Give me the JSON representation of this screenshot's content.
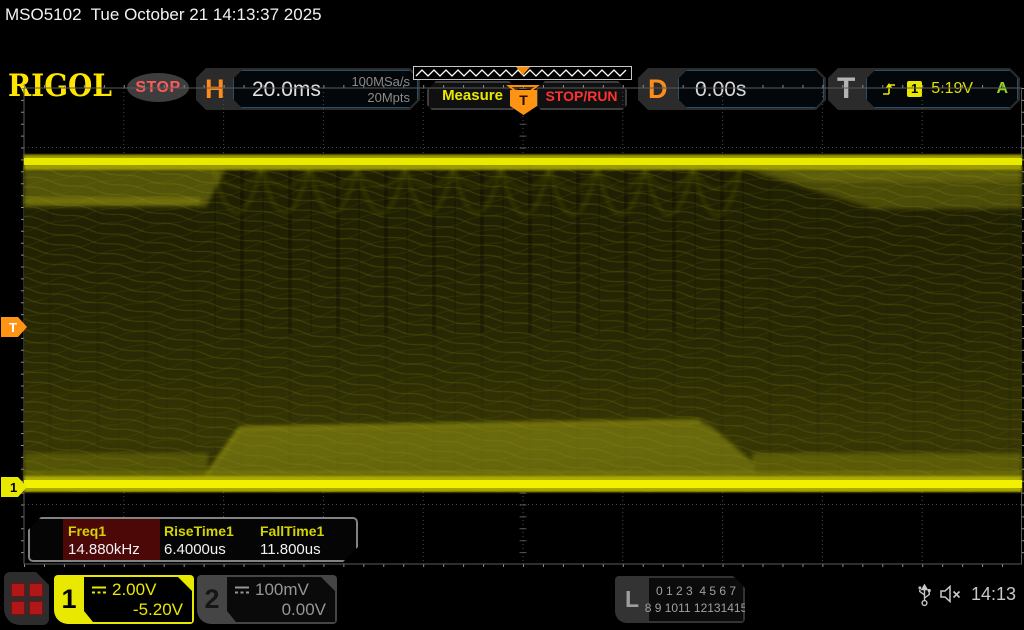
{
  "titlebar": {
    "text": "MSO5102  Tue October 21 14:13:37 2025"
  },
  "header": {
    "brand": "RIGOL",
    "run_state": "STOP",
    "horizontal": {
      "label": "H",
      "timebase": "20.0ms",
      "sample_rate": "100MSa/s",
      "mem_depth": "20Mpts"
    },
    "buttons": {
      "measure": "Measure",
      "stop_run": "STOP/RUN"
    },
    "delay": {
      "label": "D",
      "value": "0.00s"
    },
    "trigger": {
      "label": "T",
      "slope_icon": "rising-edge-icon",
      "source_badge": "1",
      "level": "5.19V",
      "sweep_mode": "A"
    }
  },
  "plot": {
    "trigger_position_label": "T",
    "trigger_level_label": "T",
    "channel_marker_label": "1"
  },
  "measurements": {
    "items": [
      {
        "name": "Freq1",
        "value": "14.880kHz",
        "highlighted": true
      },
      {
        "name": "RiseTime1",
        "value": "6.4000us",
        "highlighted": false
      },
      {
        "name": "FallTime1",
        "value": "11.800us",
        "highlighted": false
      }
    ]
  },
  "bottombar": {
    "ch1": {
      "number": "1",
      "scale": "2.00V",
      "offset": "-5.20V",
      "coupling_icon": "dc-coupling-icon"
    },
    "ch2": {
      "number": "2",
      "scale": "100mV",
      "offset": "0.00V",
      "coupling_icon": "dc-coupling-icon"
    },
    "logic": {
      "label": "L",
      "row1": "0 1 2 3  4 5 6 7",
      "row2": "8 9 1011 12131415"
    },
    "clock": "14:13"
  },
  "colors": {
    "channel1_yellow": "#e8e800",
    "channel2_gray": "#969696",
    "trigger_orange": "#ff8c00",
    "stop_red": "#ff5a5a",
    "sweep_auto_green": "#8cd41e",
    "measure_highlight_maroon": "#4c0707"
  }
}
